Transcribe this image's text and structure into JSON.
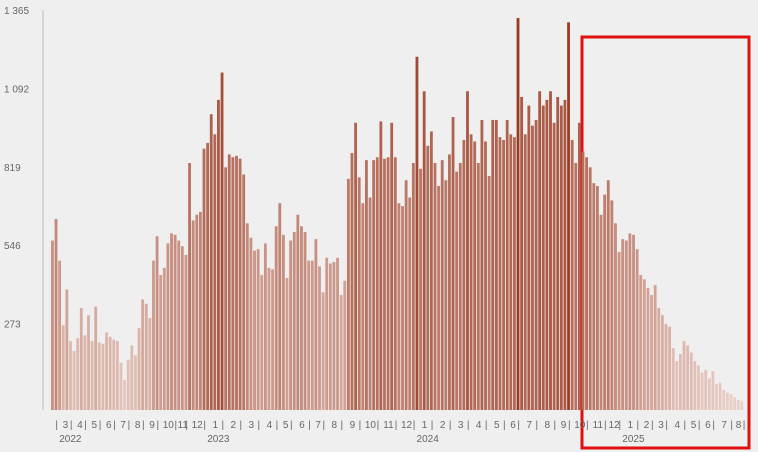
{
  "chart_data": {
    "type": "bar",
    "ylim": [
      0,
      1365
    ],
    "yticks": [
      273,
      546,
      819,
      {
        "value": 1092,
        "label": "1 092"
      },
      {
        "value": 1365,
        "label": "1 365"
      }
    ],
    "color_low": "#ecd3cc",
    "color_high": "#993a22",
    "groups": [
      {
        "month": null,
        "year": null,
        "values": [
          590,
          665
        ]
      },
      {
        "month": "3",
        "year": "2022",
        "values": [
          520,
          295,
          420,
          240
        ]
      },
      {
        "month": "4",
        "year": null,
        "values": [
          205,
          250,
          355,
          260
        ]
      },
      {
        "month": "5",
        "year": null,
        "values": [
          330,
          240,
          360,
          235
        ]
      },
      {
        "month": "6",
        "year": null,
        "values": [
          230,
          270,
          255,
          245
        ]
      },
      {
        "month": "7",
        "year": null,
        "values": [
          240,
          165,
          105,
          175
        ]
      },
      {
        "month": "8",
        "year": null,
        "values": [
          225,
          190,
          285,
          385
        ]
      },
      {
        "month": "9",
        "year": null,
        "values": [
          370,
          320,
          520,
          605
        ]
      },
      {
        "month": "10",
        "year": null,
        "values": [
          470,
          495,
          580,
          615,
          610
        ]
      },
      {
        "month": "11",
        "year": null,
        "values": [
          590,
          570,
          540
        ]
      },
      {
        "month": "12",
        "year": null,
        "values": [
          860,
          660,
          680,
          690,
          910
        ]
      },
      {
        "month": "1",
        "year": "2023",
        "values": [
          930,
          1030,
          960,
          1080,
          1175
        ]
      },
      {
        "month": "2",
        "year": null,
        "values": [
          845,
          890,
          880,
          885,
          875
        ]
      },
      {
        "month": "3",
        "year": null,
        "values": [
          820,
          650,
          600,
          555,
          560
        ]
      },
      {
        "month": "4",
        "year": null,
        "values": [
          470,
          580,
          495,
          490,
          640
        ]
      },
      {
        "month": "5",
        "year": null,
        "values": [
          720,
          610,
          460,
          590
        ]
      },
      {
        "month": "6",
        "year": null,
        "values": [
          620,
          680,
          640,
          620,
          520
        ]
      },
      {
        "month": "7",
        "year": null,
        "values": [
          520,
          595,
          500,
          410
        ]
      },
      {
        "month": "8",
        "year": null,
        "values": [
          530,
          510,
          515,
          530,
          400
        ]
      },
      {
        "month": "9",
        "year": null,
        "values": [
          450,
          805,
          895,
          1000,
          810
        ]
      },
      {
        "month": "10",
        "year": null,
        "values": [
          720,
          870,
          740,
          870,
          880
        ]
      },
      {
        "month": "11",
        "year": null,
        "values": [
          1005,
          875,
          880,
          1000,
          880
        ]
      },
      {
        "month": "12",
        "year": null,
        "values": [
          720,
          710,
          800,
          740,
          860
        ]
      },
      {
        "month": "1",
        "year": "2024",
        "values": [
          1230,
          840,
          1110,
          920,
          970
        ]
      },
      {
        "month": "2",
        "year": null,
        "values": [
          860,
          780,
          870,
          800,
          890
        ]
      },
      {
        "month": "3",
        "year": null,
        "values": [
          1020,
          830,
          860,
          940,
          1110
        ]
      },
      {
        "month": "4",
        "year": null,
        "values": [
          960,
          935,
          860,
          1010,
          935
        ]
      },
      {
        "month": "5",
        "year": null,
        "values": [
          815,
          1010,
          1010,
          950,
          940
        ]
      },
      {
        "month": "6",
        "year": null,
        "values": [
          1010,
          960,
          950,
          1365
        ]
      },
      {
        "month": "7",
        "year": null,
        "values": [
          1090,
          960,
          1060,
          990,
          1010
        ]
      },
      {
        "month": "8",
        "year": null,
        "values": [
          1110,
          1060,
          1080,
          1110,
          1000
        ]
      },
      {
        "month": "9",
        "year": null,
        "values": [
          1090,
          1060,
          1080,
          1350
        ]
      },
      {
        "month": "10",
        "year": null,
        "values": [
          940,
          860,
          1000,
          900,
          880
        ]
      },
      {
        "month": "11",
        "year": null,
        "values": [
          845,
          790,
          780,
          680,
          750
        ]
      },
      {
        "month": "12",
        "year": null,
        "values": [
          800,
          730,
          650,
          550
        ]
      },
      {
        "month": "1",
        "year": "2025",
        "values": [
          595,
          590,
          615,
          610,
          560
        ]
      },
      {
        "month": "2",
        "year": null,
        "values": [
          470,
          455,
          425,
          400
        ]
      },
      {
        "month": "3",
        "year": null,
        "values": [
          435,
          355,
          330,
          300
        ]
      },
      {
        "month": "4",
        "year": null,
        "values": [
          290,
          215,
          170,
          195,
          240
        ]
      },
      {
        "month": "5",
        "year": null,
        "values": [
          225,
          200,
          170,
          155
        ]
      },
      {
        "month": "6",
        "year": null,
        "values": [
          130,
          140,
          110,
          135
        ]
      },
      {
        "month": "7",
        "year": null,
        "values": [
          90,
          95,
          70,
          60,
          55
        ]
      },
      {
        "month": "8",
        "year": null,
        "values": [
          45,
          35,
          30
        ]
      }
    ]
  }
}
